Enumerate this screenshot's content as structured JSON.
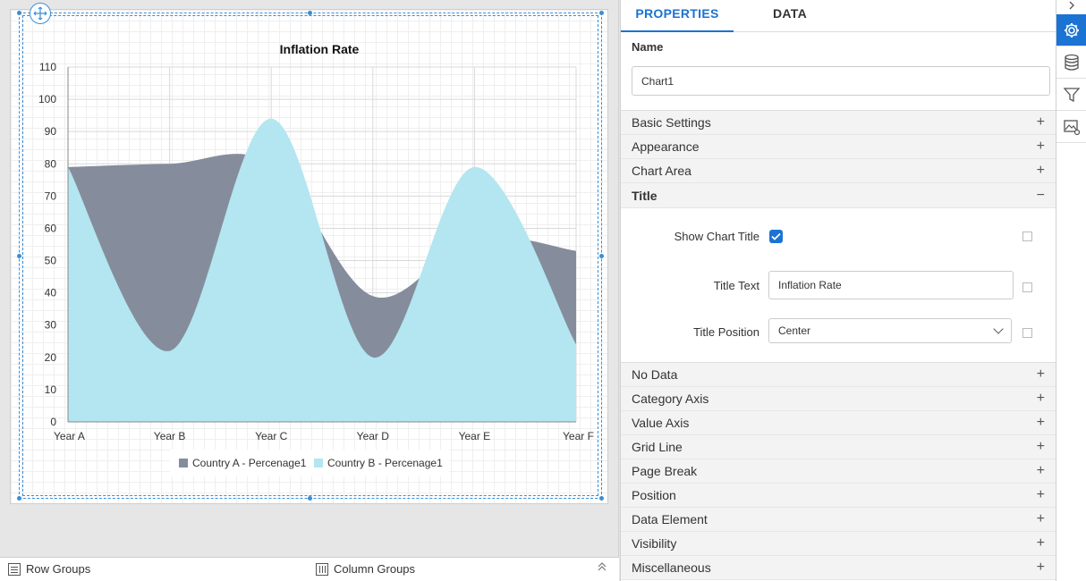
{
  "chart_data": {
    "type": "area",
    "title": "Inflation Rate",
    "categories": [
      "Year A",
      "Year B",
      "Year C",
      "Year D",
      "Year E",
      "Year F"
    ],
    "ylim": [
      0,
      110
    ],
    "yticks": [
      0,
      10,
      20,
      30,
      40,
      50,
      60,
      70,
      80,
      90,
      100,
      110
    ],
    "grid": true,
    "legend_position": "bottom",
    "series": [
      {
        "name": "Country A - Percenage1",
        "values": [
          79,
          80,
          80,
          39,
          57,
          53
        ],
        "color": "#858d9c"
      },
      {
        "name": "Country B - Percenage1",
        "values": [
          79,
          22,
          94,
          20,
          79,
          24
        ],
        "color": "#b3e6f0"
      }
    ]
  },
  "bottom_bar": {
    "row_groups_label": "Row Groups",
    "column_groups_label": "Column Groups"
  },
  "panel": {
    "tabs": [
      {
        "label": "PROPERTIES",
        "active": true
      },
      {
        "label": "DATA",
        "active": false
      }
    ],
    "name_label": "Name",
    "name_value": "Chart1",
    "sections_before": [
      "Basic Settings",
      "Appearance",
      "Chart Area"
    ],
    "expanded_section": "Title",
    "title_props": {
      "show_chart_title_label": "Show Chart Title",
      "show_chart_title_checked": true,
      "title_text_label": "Title Text",
      "title_text_value": "Inflation Rate",
      "title_position_label": "Title Position",
      "title_position_value": "Center"
    },
    "sections_after": [
      "No Data",
      "Category Axis",
      "Value Axis",
      "Grid Line",
      "Page Break",
      "Position",
      "Data Element",
      "Visibility",
      "Miscellaneous"
    ]
  },
  "rail": {
    "icons": [
      "gear-icon",
      "database-icon",
      "filter-icon",
      "image-settings-icon"
    ],
    "active_icon": "gear-icon"
  },
  "colors": {
    "accent": "#1b73d3",
    "selection": "#3a8fd6"
  }
}
